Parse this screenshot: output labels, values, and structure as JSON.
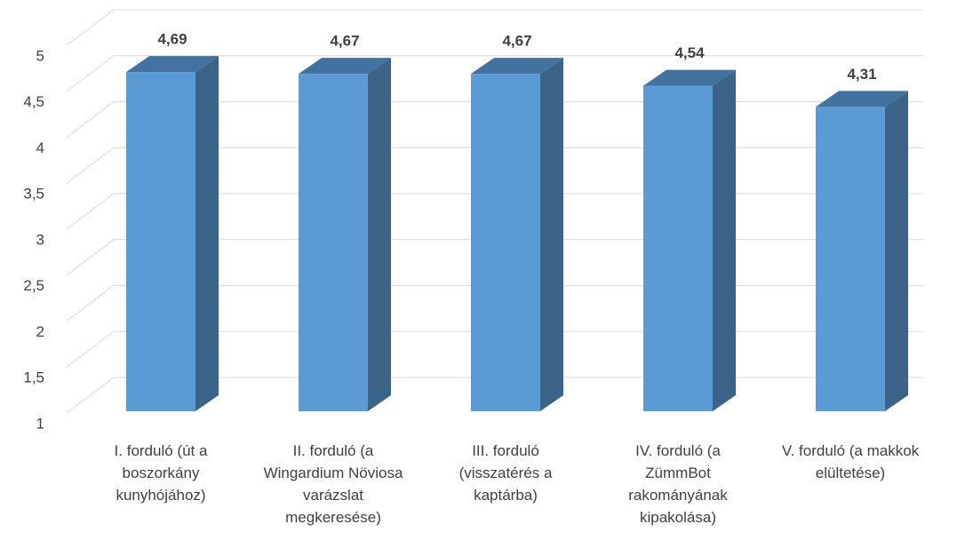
{
  "chart_data": {
    "type": "bar3d",
    "categories": [
      "I. forduló (út a boszorkány kunyhójához)",
      "II. forduló (a Wingardium Növiosa varázslat megkeresése)",
      "III. forduló (visszatérés a kaptárba)",
      "IV. forduló (a ZümmBot rakományának kipakolása)",
      "V. forduló (a makkok elültetése)"
    ],
    "values": [
      4.69,
      4.67,
      4.67,
      4.54,
      4.31
    ],
    "value_labels": [
      "4,69",
      "4,67",
      "4,67",
      "4,54",
      "4,31"
    ],
    "colors": {
      "front": "#5b9bd5",
      "side": "#3b6488",
      "top": "#4272a0"
    },
    "ylim": [
      1,
      5
    ],
    "yticks": [
      1,
      {
        "value": 1.5,
        "label": "1,5"
      },
      2,
      {
        "value": 2.5,
        "label": "2,5"
      },
      3,
      {
        "value": 3.5,
        "label": "3,5"
      },
      4,
      {
        "value": 4.5,
        "label": "4,5"
      },
      5
    ],
    "grid": true
  }
}
